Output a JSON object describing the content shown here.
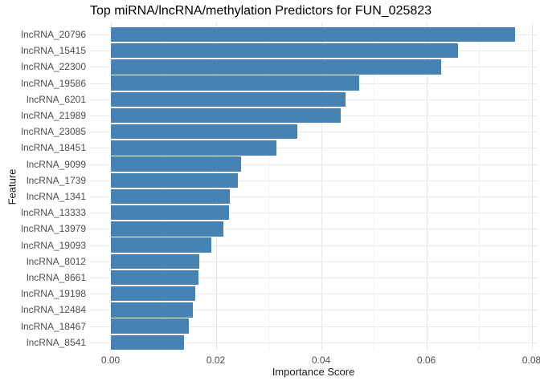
{
  "title": "Top miRNA/lncRNA/methylation Predictors for FUN_025823",
  "colors": {
    "bar": "#4682b4",
    "grid_major": "#e5e5e5",
    "grid_minor": "#f0f0f0",
    "grid_row": "#eaeaea",
    "tick_label": "#4d4d4d",
    "axis_title": "#1a1a1a",
    "title": "#000000",
    "background": "#ffffff"
  },
  "chart_data": {
    "type": "bar",
    "orientation": "horizontal",
    "title": "Top miRNA/lncRNA/methylation Predictors for FUN_025823",
    "xlabel": "Importance Score",
    "ylabel": "Feature",
    "grid": true,
    "legend": false,
    "xlim": [
      0,
      0.08
    ],
    "x_ticks": {
      "values": [
        0,
        0.02,
        0.04,
        0.06,
        0.08
      ],
      "labels": [
        "0.00",
        "0.02",
        "0.04",
        "0.06",
        "0.08"
      ]
    },
    "x_minor_ticks": [
      0.01,
      0.03,
      0.05,
      0.07
    ],
    "categories": [
      "lncRNA_20796",
      "lncRNA_15415",
      "lncRNA_22300",
      "lncRNA_19586",
      "lncRNA_6201",
      "lncRNA_21989",
      "lncRNA_23085",
      "lncRNA_18451",
      "lncRNA_9099",
      "lncRNA_1739",
      "lncRNA_1341",
      "lncRNA_13333",
      "lncRNA_13979",
      "lncRNA_19093",
      "lncRNA_8012",
      "lncRNA_8661",
      "lncRNA_19198",
      "lncRNA_12484",
      "lncRNA_18467",
      "lncRNA_8541"
    ],
    "values": [
      0.0769,
      0.066,
      0.0628,
      0.0473,
      0.0447,
      0.0437,
      0.0355,
      0.0315,
      0.0248,
      0.0242,
      0.0226,
      0.0225,
      0.0215,
      0.0192,
      0.0169,
      0.0167,
      0.0161,
      0.0157,
      0.0149,
      0.014
    ]
  }
}
